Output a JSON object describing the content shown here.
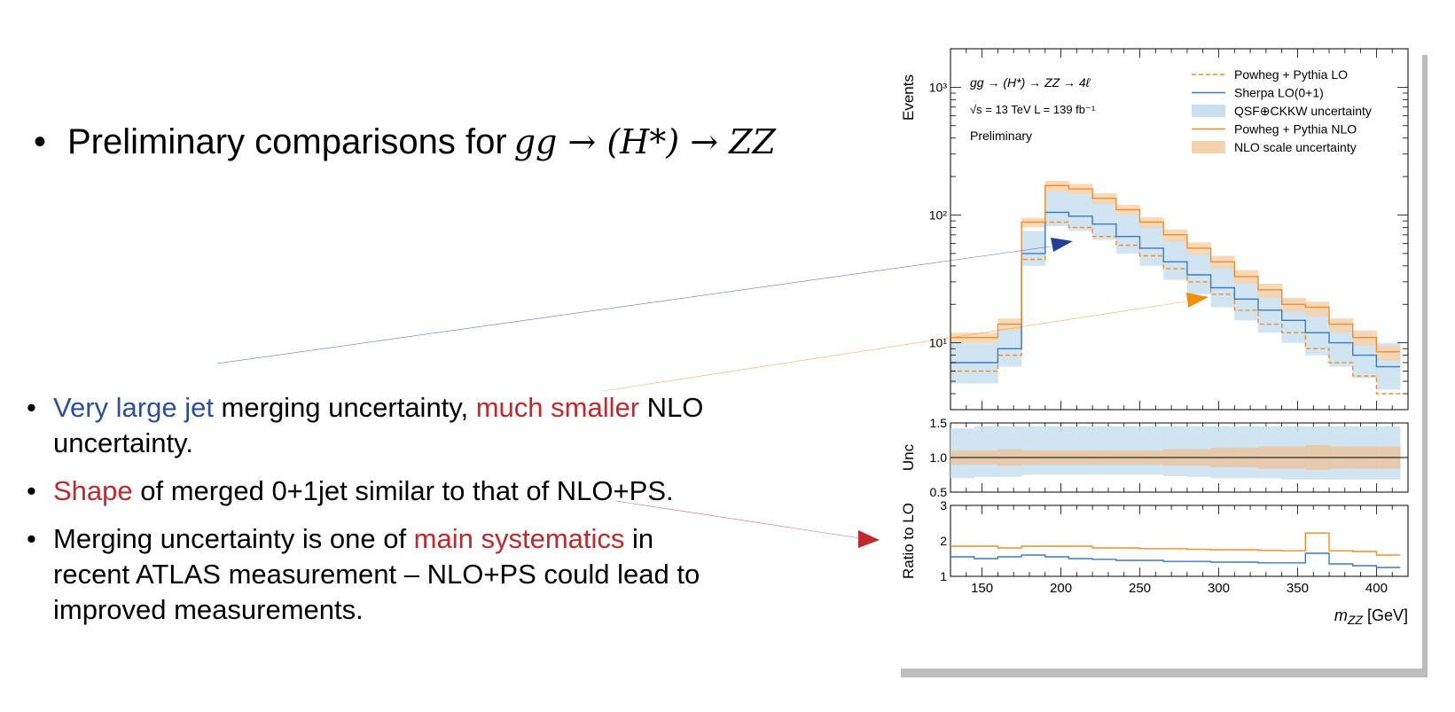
{
  "slide": {
    "title_prefix": "Preliminary comparisons for",
    "title_math": "gg → (H*) → ZZ",
    "bullets": [
      {
        "parts": [
          {
            "text": "Very large jet",
            "color": "#2b4ea0"
          },
          {
            "text": " merging uncertainty, ",
            "color": "#000000"
          },
          {
            "text": "much smaller",
            "color": "#c0282d"
          },
          {
            "text": " NLO uncertainty.",
            "color": "#000000"
          }
        ]
      },
      {
        "parts": [
          {
            "text": "Shape",
            "color": "#c0282d"
          },
          {
            "text": " of merged 0+1jet similar to that of NLO+PS.",
            "color": "#000000"
          }
        ]
      },
      {
        "parts": [
          {
            "text": "Merging uncertainty is one of ",
            "color": "#000000"
          },
          {
            "text": "main systematics",
            "color": "#c0282d"
          },
          {
            "text": " in recent ATLAS measurement – NLO+PS could lead to improved measurements.",
            "color": "#000000"
          }
        ]
      }
    ]
  },
  "chart_data": {
    "type": "line",
    "style": "step-histogram",
    "bin_edges": [
      130,
      145,
      160,
      175,
      190,
      205,
      220,
      235,
      250,
      265,
      280,
      295,
      310,
      325,
      340,
      355,
      370,
      385,
      400,
      415
    ],
    "xlim": [
      130,
      420
    ],
    "xlabel_main": "m",
    "xlabel_sub": "ZZ",
    "xlabel_unit": " [GeV]",
    "x_ticks": [
      150,
      200,
      250,
      300,
      350,
      400
    ],
    "main_panel": {
      "ylabel": "Events",
      "yscale": "log",
      "ylim": [
        3,
        2000
      ],
      "y_ticks": [
        {
          "value": 10,
          "label": "10¹"
        },
        {
          "value": 100,
          "label": "10²"
        },
        {
          "value": 1000,
          "label": "10³"
        }
      ],
      "annotations": {
        "process": "gg → (H*) → ZZ → 4ℓ",
        "energy": "√s = 13 TeV   L = 139 fb⁻¹",
        "status": "Preliminary"
      },
      "series": [
        {
          "name": "Powheg + Pythia LO",
          "style": "dashed",
          "color": "#f28c28",
          "values": [
            6,
            6,
            8,
            45,
            88,
            80,
            68,
            58,
            48,
            38,
            30,
            24,
            18,
            14,
            12,
            9,
            7,
            5.5,
            4
          ]
        },
        {
          "name": "Sherpa LO(0+1)",
          "style": "solid",
          "color": "#3a7abf",
          "values": [
            7,
            7,
            9,
            50,
            105,
            98,
            85,
            68,
            55,
            43,
            34,
            27,
            22,
            18,
            15,
            12,
            10,
            8,
            6.5
          ]
        },
        {
          "name": "Powheg + Pythia NLO",
          "style": "solid",
          "color": "#f28c28",
          "values": [
            11,
            11,
            14,
            88,
            170,
            160,
            135,
            110,
            88,
            70,
            55,
            43,
            33,
            26,
            20,
            19,
            14,
            11,
            8.5
          ]
        }
      ],
      "bands": [
        {
          "name": "QSF⊕CKKW uncertainty",
          "color": "#c9dff0",
          "low": [
            4.8,
            4.8,
            6.5,
            40,
            82,
            75,
            64,
            50,
            40,
            31,
            24,
            19,
            15,
            12,
            10,
            8,
            6.5,
            5.3,
            4.3
          ],
          "high": [
            10,
            10,
            13,
            75,
            155,
            145,
            130,
            100,
            82,
            65,
            50,
            40,
            32,
            26,
            22,
            18,
            15,
            12,
            10
          ]
        },
        {
          "name": "NLO scale uncertainty",
          "color": "#f6d2ac",
          "low": [
            10,
            10,
            12.5,
            80,
            152,
            145,
            122,
            100,
            80,
            62,
            49,
            38,
            29,
            22.5,
            17.5,
            16,
            12,
            9.5,
            7.3
          ],
          "high": [
            12,
            12,
            15.5,
            95,
            185,
            175,
            148,
            120,
            96,
            77,
            61,
            48,
            37,
            29,
            22.5,
            21,
            15.5,
            12.5,
            9.5
          ]
        }
      ]
    },
    "unc_panel": {
      "ylabel": "Unc",
      "ylim": [
        0.5,
        1.5
      ],
      "y_ticks": [
        {
          "value": 0.5,
          "label": "0.5"
        },
        {
          "value": 1.0,
          "label": "1.0"
        },
        {
          "value": 1.5,
          "label": "1.5"
        }
      ],
      "blue_low": [
        0.7,
        0.72,
        0.72,
        0.75,
        0.75,
        0.75,
        0.75,
        0.75,
        0.75,
        0.73,
        0.72,
        0.7,
        0.7,
        0.7,
        0.68,
        0.68,
        0.68,
        0.68,
        0.68
      ],
      "blue_high": [
        1.42,
        1.45,
        1.45,
        1.45,
        1.45,
        1.45,
        1.45,
        1.45,
        1.45,
        1.45,
        1.45,
        1.45,
        1.45,
        1.45,
        1.45,
        1.45,
        1.45,
        1.45,
        1.45
      ],
      "orange_low": [
        0.9,
        0.9,
        0.88,
        0.9,
        0.9,
        0.9,
        0.9,
        0.9,
        0.9,
        0.88,
        0.88,
        0.86,
        0.86,
        0.84,
        0.84,
        0.82,
        0.84,
        0.84,
        0.84
      ],
      "orange_high": [
        1.1,
        1.1,
        1.12,
        1.1,
        1.1,
        1.1,
        1.1,
        1.1,
        1.1,
        1.12,
        1.12,
        1.14,
        1.14,
        1.16,
        1.16,
        1.18,
        1.16,
        1.16,
        1.16
      ]
    },
    "ratio_panel": {
      "ylabel": "Ratio to LO",
      "ylim": [
        1,
        3
      ],
      "y_ticks": [
        {
          "value": 1,
          "label": "1"
        },
        {
          "value": 2,
          "label": "2"
        },
        {
          "value": 3,
          "label": "3"
        }
      ],
      "series": [
        {
          "name": "NLO / LO",
          "color": "#f28c28",
          "values": [
            1.85,
            1.85,
            1.8,
            1.85,
            1.85,
            1.85,
            1.8,
            1.8,
            1.78,
            1.78,
            1.76,
            1.75,
            1.75,
            1.73,
            1.72,
            2.22,
            1.72,
            1.7,
            1.6
          ]
        },
        {
          "name": "Sherpa / LO",
          "color": "#3a7abf",
          "values": [
            1.55,
            1.5,
            1.55,
            1.6,
            1.55,
            1.5,
            1.48,
            1.45,
            1.45,
            1.42,
            1.42,
            1.4,
            1.4,
            1.38,
            1.38,
            1.65,
            1.35,
            1.3,
            1.25
          ]
        }
      ]
    },
    "legend_position": "top-right",
    "grid": false
  },
  "colors": {
    "blue_arrow": "#243f98",
    "orange_arrow": "#f0900a",
    "red_arrow": "#c0282d"
  }
}
